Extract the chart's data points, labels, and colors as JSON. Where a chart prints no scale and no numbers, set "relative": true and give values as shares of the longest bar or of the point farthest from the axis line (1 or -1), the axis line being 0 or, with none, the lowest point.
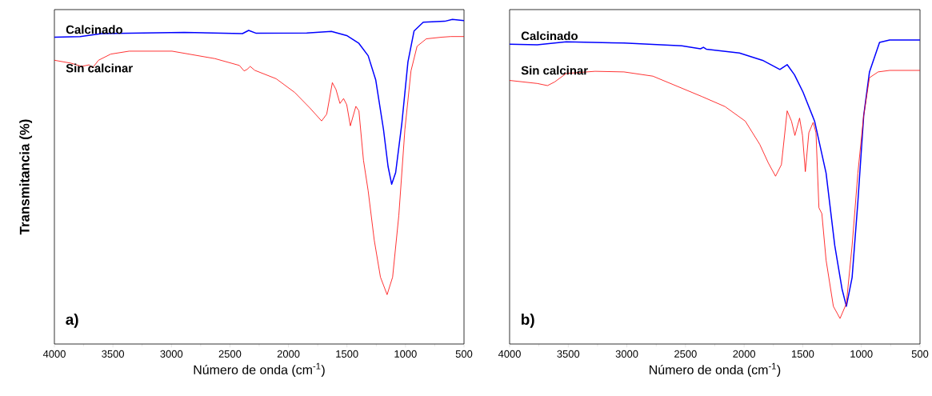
{
  "chart_data": [
    {
      "type": "line",
      "xlabel": "Número de onda (cm$^{-1}$)",
      "ylabel": "Transmitancia  (%)",
      "relative": true,
      "xlim": [
        4000,
        500
      ],
      "xticks": [
        4000,
        3500,
        3000,
        2500,
        2000,
        1500,
        1000,
        500
      ],
      "annotations": [
        "a)"
      ],
      "series": [
        {
          "name": "Calcinado",
          "color": "#0000ff",
          "x": [
            4000,
            3780,
            3597,
            2890,
            2393,
            2340,
            2275,
            1843,
            1633,
            1502,
            1398,
            1319,
            1254,
            1188,
            1149,
            1118,
            1084,
            1031,
            979,
            927,
            848,
            665,
            599,
            500
          ],
          "values": [
            0.945,
            0.947,
            0.956,
            0.96,
            0.956,
            0.966,
            0.957,
            0.958,
            0.963,
            0.95,
            0.926,
            0.888,
            0.813,
            0.661,
            0.547,
            0.492,
            0.528,
            0.68,
            0.869,
            0.964,
            0.991,
            0.994,
            1.0,
            0.996
          ]
        },
        {
          "name": "Sin calcinar",
          "color": "#ff0000",
          "x": [
            4000,
            3859,
            3767,
            3702,
            3675,
            3623,
            3518,
            3361,
            2995,
            2628,
            2419,
            2379,
            2353,
            2327,
            2288,
            2105,
            1947,
            1817,
            1717,
            1673,
            1625,
            1594,
            1560,
            1529,
            1502,
            1471,
            1424,
            1398,
            1359,
            1319,
            1267,
            1214,
            1157,
            1110,
            1057,
            1005,
            953,
            901,
            822,
            691,
            612,
            500
          ],
          "values": [
            0.874,
            0.865,
            0.855,
            0.86,
            0.85,
            0.874,
            0.893,
            0.902,
            0.902,
            0.879,
            0.858,
            0.841,
            0.846,
            0.855,
            0.843,
            0.817,
            0.775,
            0.727,
            0.687,
            0.708,
            0.805,
            0.784,
            0.741,
            0.756,
            0.737,
            0.672,
            0.732,
            0.718,
            0.566,
            0.472,
            0.32,
            0.206,
            0.152,
            0.206,
            0.396,
            0.661,
            0.841,
            0.917,
            0.94,
            0.945,
            0.947,
            0.947
          ]
        }
      ]
    },
    {
      "type": "line",
      "xlabel": "Número de onda (cm$^{-1}$)",
      "relative": true,
      "xlim": [
        4000,
        500
      ],
      "xticks": [
        4000,
        3500,
        3000,
        2500,
        2000,
        1500,
        1000,
        500
      ],
      "annotations": [
        "b)"
      ],
      "series": [
        {
          "name": "Calcinado",
          "color": "#0000ff",
          "x": [
            4000,
            3764,
            3517,
            3025,
            2532,
            2372,
            2347,
            2323,
            2040,
            1842,
            1695,
            1633,
            1571,
            1498,
            1399,
            1301,
            1227,
            1165,
            1128,
            1079,
            1030,
            980,
            931,
            845,
            759,
            500
          ],
          "values": [
            0.986,
            0.984,
            0.994,
            0.99,
            0.981,
            0.971,
            0.976,
            0.97,
            0.957,
            0.933,
            0.903,
            0.919,
            0.886,
            0.829,
            0.733,
            0.562,
            0.324,
            0.181,
            0.124,
            0.219,
            0.467,
            0.752,
            0.895,
            0.992,
            1.0,
            1.0
          ]
        },
        {
          "name": "Sin calcinar",
          "color": "#ff0000",
          "x": [
            4000,
            3764,
            3677,
            3616,
            3517,
            3271,
            3025,
            2778,
            2360,
            2163,
            1990,
            1867,
            1793,
            1732,
            1682,
            1633,
            1596,
            1567,
            1527,
            1502,
            1478,
            1448,
            1411,
            1387,
            1362,
            1337,
            1301,
            1239,
            1182,
            1128,
            1079,
            1030,
            980,
            931,
            857,
            759,
            500
          ],
          "values": [
            0.867,
            0.857,
            0.85,
            0.862,
            0.89,
            0.897,
            0.895,
            0.881,
            0.814,
            0.781,
            0.733,
            0.657,
            0.595,
            0.552,
            0.59,
            0.767,
            0.733,
            0.686,
            0.743,
            0.686,
            0.567,
            0.695,
            0.729,
            0.695,
            0.448,
            0.429,
            0.276,
            0.124,
            0.084,
            0.133,
            0.324,
            0.562,
            0.752,
            0.876,
            0.895,
            0.9,
            0.9
          ]
        }
      ]
    }
  ]
}
